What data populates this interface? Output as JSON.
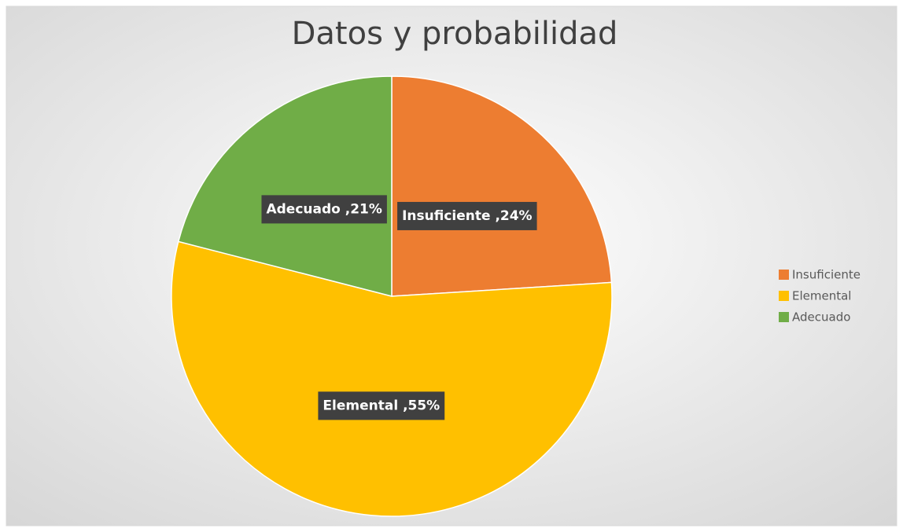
{
  "chart_data": {
    "type": "pie",
    "title": "Datos y probabilidad",
    "categories": [
      "Insuficiente",
      "Elemental",
      "Adecuado"
    ],
    "values": [
      24,
      55,
      21
    ],
    "value_labels": [
      "Insuficiente ,24%",
      "Elemental ,55%",
      "Adecuado ,21%"
    ],
    "colors": [
      "#ED7D31",
      "#FFC000",
      "#70AD47"
    ],
    "legend": "right"
  }
}
